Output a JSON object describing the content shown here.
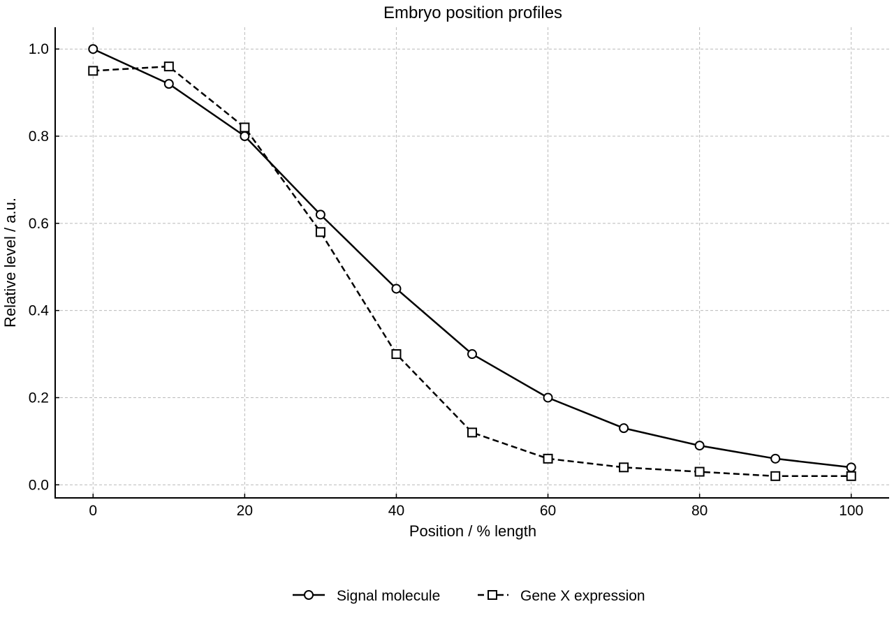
{
  "chart_data": {
    "type": "line",
    "title": "Embryo position profiles",
    "xlabel": "Position / % length",
    "ylabel": "Relative level / a.u.",
    "xlim": [
      -5,
      105
    ],
    "ylim": [
      -0.03,
      1.05
    ],
    "x_ticks": [
      0,
      20,
      40,
      60,
      80,
      100
    ],
    "x_tick_labels": [
      "0",
      "20",
      "40",
      "60",
      "80",
      "100"
    ],
    "y_ticks": [
      0.0,
      0.2,
      0.4,
      0.6,
      0.8,
      1.0
    ],
    "y_tick_labels": [
      "0.0",
      "0.2",
      "0.4",
      "0.6",
      "0.8",
      "1.0"
    ],
    "grid": true,
    "legend_position": "bottom-center",
    "x": [
      0,
      10,
      20,
      30,
      40,
      50,
      60,
      70,
      80,
      90,
      100
    ],
    "series": [
      {
        "name": "Signal molecule",
        "values": [
          1.0,
          0.92,
          0.8,
          0.62,
          0.45,
          0.3,
          0.2,
          0.13,
          0.09,
          0.06,
          0.04
        ],
        "line_style": "solid",
        "marker": "circle",
        "color": "#000000"
      },
      {
        "name": "Gene X expression",
        "values": [
          0.95,
          0.96,
          0.82,
          0.58,
          0.3,
          0.12,
          0.06,
          0.04,
          0.03,
          0.02,
          0.02
        ],
        "line_style": "dashed",
        "marker": "square",
        "color": "#000000"
      }
    ]
  }
}
